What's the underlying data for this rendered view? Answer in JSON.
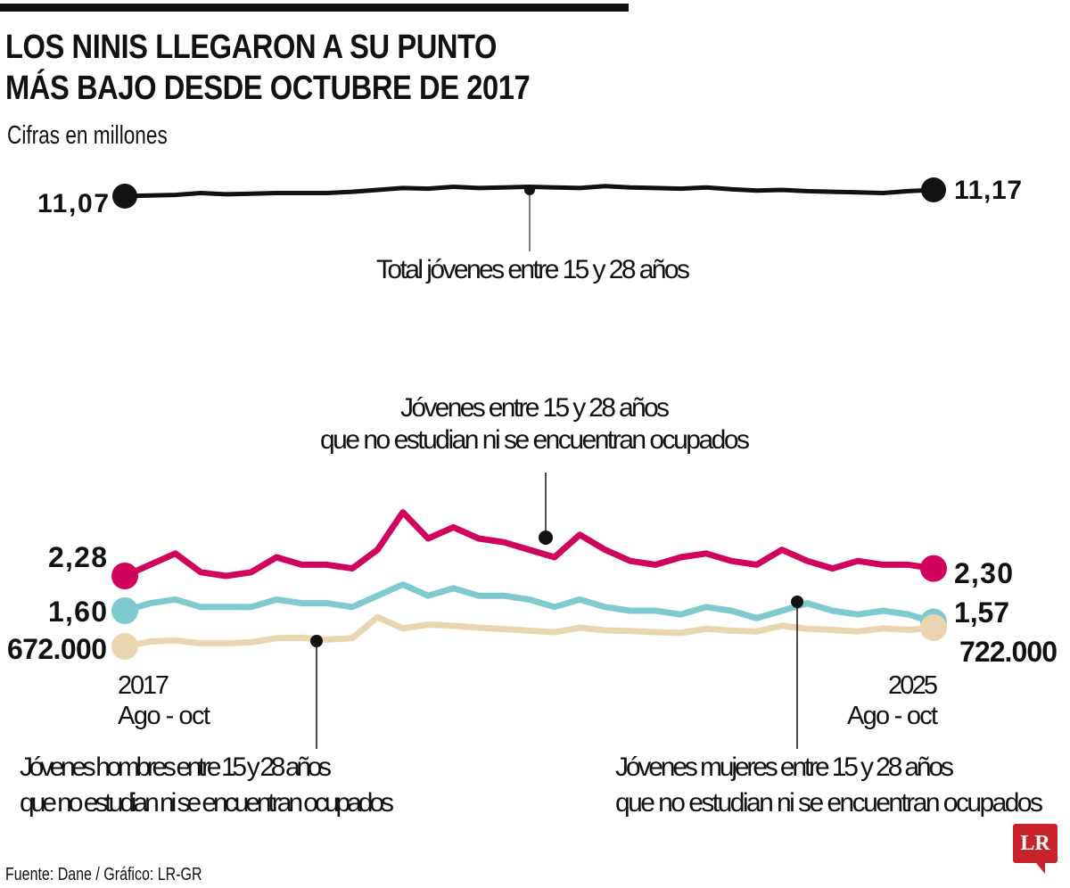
{
  "header": {
    "title_line1": "LOS NINIS LLEGARON A SU PUNTO",
    "title_line2": "MÁS BAJO DESDE OCTUBRE DE 2017",
    "subtitle": "Cifras en millones"
  },
  "footer": {
    "source": "Fuente: Dane / Gráfico: LR-GR",
    "logo_text": "LR"
  },
  "colors": {
    "total": "#111111",
    "ninis_total": "#D0045C",
    "ninis_hombres": "#E9D6B0",
    "ninis_mujeres": "#7FC9D0",
    "logo": "#C8232C"
  },
  "chart_data": [
    {
      "type": "line",
      "title": "Total jóvenes entre 15 y 28 años",
      "unit": "millones",
      "x_start_label": [
        "2017",
        "Ago - oct"
      ],
      "x_end_label": [
        "2025",
        "Ago - oct"
      ],
      "series": [
        {
          "name": "Total jóvenes entre 15 y 28 años",
          "start_label": "11,07",
          "end_label": "11,17",
          "values": [
            11.07,
            11.08,
            11.09,
            11.12,
            11.1,
            11.11,
            11.12,
            11.12,
            11.12,
            11.14,
            11.17,
            11.2,
            11.19,
            11.22,
            11.2,
            11.21,
            11.22,
            11.21,
            11.2,
            11.23,
            11.21,
            11.2,
            11.19,
            11.21,
            11.18,
            11.16,
            11.17,
            11.15,
            11.14,
            11.13,
            11.12,
            11.15,
            11.17
          ]
        }
      ]
    },
    {
      "type": "line",
      "title": "Jóvenes entre 15 y 28 años que no estudian ni se encuentran ocupados",
      "unit": "millones",
      "x_start_label": [
        "2017",
        "Ago - oct"
      ],
      "x_end_label": [
        "2025",
        "Ago - oct"
      ],
      "series": [
        {
          "name": "Jóvenes entre 15 y 28 años que no estudian ni se encuentran ocupados",
          "start_label": "2,28",
          "end_label": "2,30",
          "values": [
            2.28,
            2.31,
            2.34,
            2.29,
            2.28,
            2.29,
            2.33,
            2.31,
            2.31,
            2.3,
            2.35,
            2.45,
            2.38,
            2.41,
            2.38,
            2.37,
            2.35,
            2.33,
            2.39,
            2.35,
            2.32,
            2.31,
            2.33,
            2.34,
            2.32,
            2.31,
            2.35,
            2.32,
            2.3,
            2.32,
            2.31,
            2.31,
            2.3
          ]
        },
        {
          "name": "Jóvenes mujeres entre 15 y 28 años que no estudian ni se encuentran ocupados",
          "start_label": "1,60",
          "end_label": "1,57",
          "values": [
            1.6,
            1.62,
            1.63,
            1.61,
            1.61,
            1.61,
            1.63,
            1.62,
            1.62,
            1.61,
            1.64,
            1.67,
            1.64,
            1.66,
            1.64,
            1.64,
            1.63,
            1.61,
            1.63,
            1.61,
            1.6,
            1.6,
            1.59,
            1.61,
            1.6,
            1.58,
            1.6,
            1.62,
            1.6,
            1.59,
            1.6,
            1.59,
            1.57
          ]
        },
        {
          "name": "Jóvenes hombres entre 15 y 28 años que no estudian ni se encuentran ocupados",
          "start_label": "672.000",
          "end_label": "722.000",
          "values": [
            0.672,
            0.685,
            0.688,
            0.68,
            0.68,
            0.683,
            0.694,
            0.695,
            0.69,
            0.694,
            0.75,
            0.72,
            0.73,
            0.727,
            0.722,
            0.718,
            0.714,
            0.71,
            0.722,
            0.715,
            0.713,
            0.71,
            0.708,
            0.719,
            0.714,
            0.712,
            0.727,
            0.719,
            0.716,
            0.712,
            0.72,
            0.716,
            0.722
          ]
        }
      ]
    }
  ],
  "annotations": {
    "total": "Total jóvenes entre 15 y 28 años",
    "ninis_line1": "Jóvenes entre 15 y 28 años",
    "ninis_line2": "que no estudian ni se encuentran ocupados",
    "hombres_line1": "Jóvenes hombres entre 15 y 28 años",
    "hombres_line2": "que no estudian ni se encuentran ocupados",
    "mujeres_line1": "Jóvenes mujeres entre 15 y 28 años",
    "mujeres_line2": "que no estudian ni se encuentran ocupados"
  }
}
